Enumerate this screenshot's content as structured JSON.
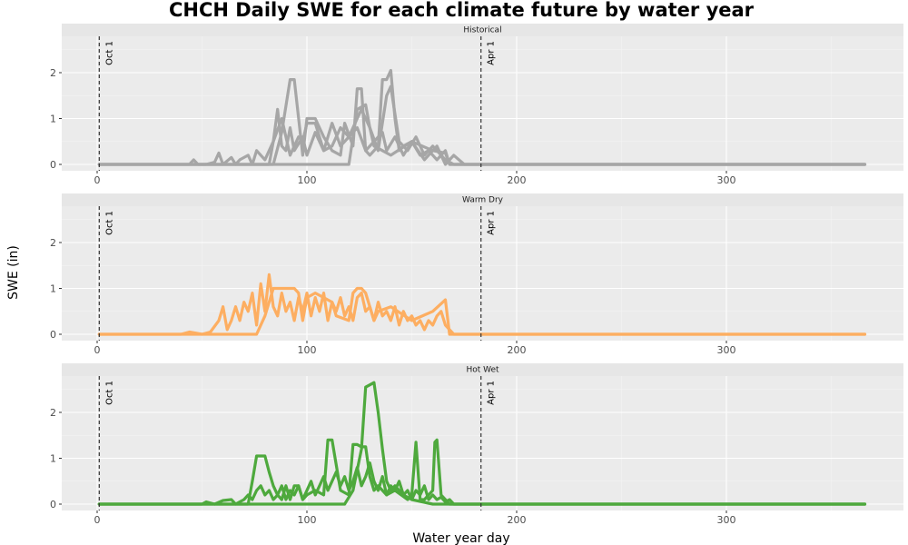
{
  "chart_data": {
    "type": "line",
    "title": "CHCH Daily SWE for each climate future by water year",
    "xlabel": "Water year day",
    "ylabel": "SWE (in)",
    "xlim": [
      0,
      366
    ],
    "ylim": [
      0,
      2.7
    ],
    "x_ticks": [
      0,
      100,
      200,
      300
    ],
    "y_ticks": [
      0,
      1,
      2
    ],
    "grid": true,
    "reference_lines": [
      {
        "x": 1,
        "label": "Oct 1"
      },
      {
        "x": 183,
        "label": "Apr 1"
      }
    ],
    "panels": [
      {
        "name": "Historical",
        "color": "#a6a6a6",
        "series": [
          {
            "x": [
              1,
              44,
              46,
              48,
              52,
              56,
              58,
              60,
              64,
              66,
              68,
              72,
              74,
              76,
              80,
              84,
              86,
              88,
              90,
              92,
              94,
              98,
              100,
              104,
              108,
              112,
              116,
              120,
              124,
              128,
              132,
              136,
              138,
              142,
              146,
              150,
              156,
              162,
              166,
              170,
              175,
              182,
              366
            ],
            "y": [
              0,
              0,
              0.1,
              0,
              0,
              0.05,
              0.25,
              0,
              0.15,
              0,
              0.1,
              0.2,
              0,
              0.3,
              0.1,
              0.5,
              1.2,
              0.4,
              0.3,
              0.8,
              0.3,
              0.6,
              0.2,
              0.7,
              0.3,
              0.9,
              0.4,
              0.6,
              0.8,
              0.3,
              0.5,
              0.7,
              0.3,
              0.6,
              0.2,
              0.5,
              0.1,
              0.4,
              0,
              0.2,
              0,
              0,
              0
            ]
          },
          {
            "x": [
              1,
              82,
              84,
              88,
              92,
              94,
              96,
              98,
              100,
              104,
              108,
              112,
              116,
              120,
              124,
              126,
              130,
              134,
              138,
              140,
              144,
              148,
              152,
              156,
              160,
              166,
              170,
              366
            ],
            "y": [
              0,
              0,
              0.5,
              1.0,
              0.2,
              0.4,
              0.6,
              0.5,
              0.9,
              0.9,
              0.3,
              0.4,
              0.8,
              0.6,
              1.0,
              1.2,
              0.8,
              0.3,
              1.5,
              1.7,
              0.5,
              0.3,
              0.6,
              0.2,
              0.4,
              0.1,
              0,
              0
            ]
          },
          {
            "x": [
              1,
              84,
              88,
              92,
              94,
              98,
              100,
              104,
              108,
              112,
              116,
              118,
              122,
              124,
              126,
              128,
              130,
              134,
              136,
              138,
              140,
              142,
              144,
              146,
              150,
              154,
              158,
              162,
              166,
              168,
              366
            ],
            "y": [
              0,
              0,
              0.7,
              1.85,
              1.85,
              0.2,
              1.0,
              1.0,
              0.6,
              0.3,
              0.2,
              0.9,
              0.4,
              1.65,
              1.65,
              0.3,
              0.2,
              0.4,
              1.85,
              1.85,
              2.05,
              1.0,
              0.3,
              0.4,
              0.5,
              0.2,
              0.3,
              0.1,
              0.3,
              0,
              0
            ]
          },
          {
            "x": [
              1,
              120,
              124,
              128,
              130,
              132,
              136,
              140,
              150,
              160,
              166,
              168,
              180,
              366
            ],
            "y": [
              0,
              0,
              1.2,
              1.3,
              0.8,
              0.4,
              0.3,
              0.2,
              0.5,
              0.3,
              0.25,
              0,
              0,
              0
            ]
          }
        ]
      },
      {
        "name": "Warm Dry",
        "color": "#fdae61",
        "series": [
          {
            "x": [
              1,
              40,
              44,
              50,
              54,
              58,
              60,
              62,
              64,
              66,
              68,
              70,
              72,
              74,
              76,
              78,
              80,
              82,
              84,
              86,
              88,
              90,
              92,
              94,
              96,
              98,
              100,
              102,
              104,
              106,
              108,
              110,
              112,
              114,
              116,
              118,
              120,
              122,
              124,
              126,
              128,
              130,
              132,
              134,
              136,
              138,
              140,
              142,
              144,
              146,
              148,
              150,
              152,
              154,
              156,
              158,
              160,
              162,
              164,
              166,
              168,
              170,
              366
            ],
            "y": [
              0,
              0,
              0.05,
              0,
              0.05,
              0.3,
              0.6,
              0.1,
              0.3,
              0.6,
              0.3,
              0.7,
              0.5,
              0.9,
              0.2,
              1.1,
              0.5,
              1.3,
              0.6,
              0.4,
              0.9,
              0.5,
              0.7,
              0.3,
              0.8,
              0.5,
              0.9,
              0.4,
              0.8,
              0.5,
              0.9,
              0.3,
              0.7,
              0.5,
              0.8,
              0.4,
              0.6,
              0.3,
              0.8,
              0.9,
              0.5,
              0.6,
              0.3,
              0.7,
              0.4,
              0.5,
              0.3,
              0.6,
              0.2,
              0.5,
              0.3,
              0.4,
              0.2,
              0.3,
              0.1,
              0.3,
              0.2,
              0.4,
              0.5,
              0.2,
              0.1,
              0,
              0
            ]
          },
          {
            "x": [
              1,
              76,
              80,
              84,
              94,
              96,
              98,
              100,
              104,
              108,
              112,
              114,
              120,
              122,
              124,
              126,
              128,
              132,
              134,
              140,
              150,
              160,
              166,
              168,
              366
            ],
            "y": [
              0,
              0,
              0.4,
              1.0,
              1.0,
              0.9,
              0.3,
              0.8,
              0.9,
              0.8,
              0.7,
              0.4,
              0.3,
              0.9,
              1.0,
              1.0,
              0.9,
              0.3,
              0.5,
              0.6,
              0.3,
              0.5,
              0.75,
              0,
              0
            ]
          }
        ]
      },
      {
        "name": "Hot Wet",
        "color": "#4ea93d",
        "series": [
          {
            "x": [
              1,
              50,
              52,
              56,
              60,
              64,
              66,
              68,
              70,
              72,
              74,
              76,
              78,
              80,
              82,
              84,
              86,
              88,
              90,
              92,
              94,
              96,
              98,
              100,
              102,
              104,
              106,
              108,
              110,
              112,
              114,
              116,
              118,
              120,
              122,
              124,
              126,
              128,
              130,
              132,
              134,
              136,
              138,
              140,
              142,
              144,
              146,
              148,
              150,
              152,
              154,
              156,
              158,
              160,
              162,
              164,
              166,
              168,
              170,
              366
            ],
            "y": [
              0,
              0,
              0.05,
              0,
              0.08,
              0.1,
              0,
              0.05,
              0.1,
              0.2,
              0.1,
              0.3,
              0.4,
              0.2,
              0.3,
              0.1,
              0.2,
              0.4,
              0.1,
              0.3,
              0.2,
              0.4,
              0.1,
              0.3,
              0.5,
              0.2,
              0.4,
              0.6,
              0.3,
              0.5,
              0.7,
              0.4,
              0.6,
              0.3,
              0.5,
              0.8,
              0.4,
              0.6,
              0.9,
              0.5,
              0.3,
              0.6,
              0.2,
              0.4,
              0.3,
              0.5,
              0.2,
              0.3,
              0.1,
              0.3,
              0.2,
              0.4,
              0.1,
              0.2,
              0.1,
              0.15,
              0.05,
              0.1,
              0,
              0
            ]
          },
          {
            "x": [
              1,
              72,
              74,
              76,
              80,
              82,
              84,
              86,
              88,
              90,
              92,
              94,
              96,
              98,
              100,
              104,
              108,
              110,
              112,
              116,
              120,
              122,
              124,
              126,
              128,
              130,
              132,
              134,
              138,
              142,
              148,
              150,
              152,
              154,
              156,
              158,
              160,
              161,
              162,
              163,
              164,
              166,
              168,
              366
            ],
            "y": [
              0,
              0,
              0.5,
              1.05,
              1.05,
              0.7,
              0.4,
              0.2,
              0.1,
              0.4,
              0.1,
              0.4,
              0.4,
              0.1,
              0.2,
              0.3,
              0.2,
              1.4,
              1.4,
              0.3,
              0.2,
              1.3,
              1.3,
              1.25,
              1.25,
              0.6,
              0.3,
              0.4,
              0.2,
              0.3,
              0.1,
              0.2,
              1.35,
              0.1,
              0.1,
              0.2,
              0.3,
              1.35,
              1.4,
              0.8,
              0.2,
              0.1,
              0,
              0
            ]
          },
          {
            "x": [
              1,
              118,
              122,
              126,
              128,
              130,
              132,
              134,
              136,
              138,
              140,
              142,
              146,
              150,
              160,
              366
            ],
            "y": [
              0,
              0,
              0.3,
              1.2,
              2.55,
              2.6,
              2.65,
              2.0,
              1.2,
              0.5,
              0.3,
              0.4,
              0.2,
              0.1,
              0,
              0
            ]
          }
        ]
      }
    ]
  }
}
